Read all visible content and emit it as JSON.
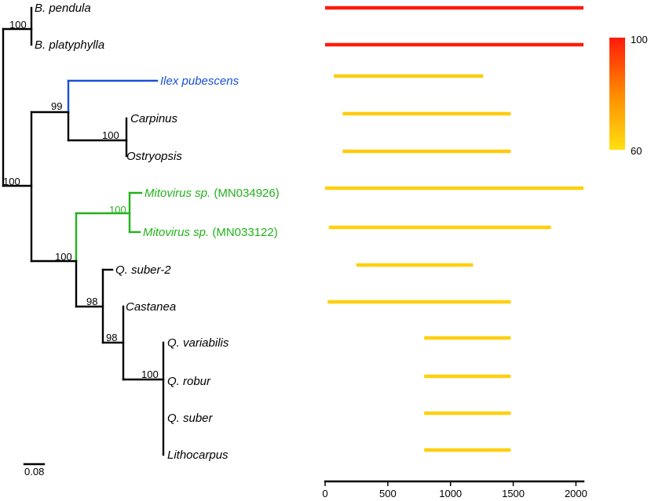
{
  "taxa": [
    {
      "id": "b-pendula",
      "name": "B. pendula",
      "suffix": "",
      "color": "black",
      "coverage": 100,
      "start": 0,
      "end": 2060
    },
    {
      "id": "b-platyphylla",
      "name": "B. platyphylla",
      "suffix": "",
      "color": "black",
      "coverage": 100,
      "start": 0,
      "end": 2060
    },
    {
      "id": "ilex-pubescens",
      "name": "Ilex pubescens",
      "suffix": "",
      "color": "blue",
      "coverage": 65,
      "start": 70,
      "end": 1260
    },
    {
      "id": "carpinus",
      "name": "Carpinus",
      "suffix": "",
      "color": "black",
      "coverage": 65,
      "start": 140,
      "end": 1480
    },
    {
      "id": "ostryopsis",
      "name": "Ostryopsis",
      "suffix": "",
      "color": "black",
      "coverage": 65,
      "start": 140,
      "end": 1480
    },
    {
      "id": "mitovirus-1",
      "name": "Mitovirus sp.",
      "suffix": " (MN034926)",
      "color": "green",
      "coverage": 64,
      "start": 0,
      "end": 2060
    },
    {
      "id": "mitovirus-2",
      "name": "Mitovirus sp.",
      "suffix": " (MN033122)",
      "color": "green",
      "coverage": 64,
      "start": 30,
      "end": 1800
    },
    {
      "id": "q-suber-2",
      "name": "Q. suber-2",
      "suffix": "",
      "color": "black",
      "coverage": 64,
      "start": 250,
      "end": 1180
    },
    {
      "id": "castanea",
      "name": "Castanea",
      "suffix": "",
      "color": "black",
      "coverage": 64,
      "start": 20,
      "end": 1480
    },
    {
      "id": "q-variabilis",
      "name": "Q. variabilis",
      "suffix": "",
      "color": "black",
      "coverage": 64,
      "start": 790,
      "end": 1480
    },
    {
      "id": "q-robur",
      "name": "Q. robur",
      "suffix": "",
      "color": "black",
      "coverage": 64,
      "start": 790,
      "end": 1480
    },
    {
      "id": "q-suber",
      "name": "Q. suber",
      "suffix": "",
      "color": "black",
      "coverage": 64,
      "start": 790,
      "end": 1480
    },
    {
      "id": "lithocarpus",
      "name": "Lithocarpus",
      "suffix": "",
      "color": "black",
      "coverage": 64,
      "start": 790,
      "end": 1480
    }
  ],
  "supports": {
    "betula": "100",
    "root": "100",
    "ilex_clade": "99",
    "carpinus_ostryopsis": "100",
    "mitovirus": "100",
    "mito_fagaceae": "100",
    "fagaceae": "98",
    "castanea_quercus": "98",
    "quercus": "100"
  },
  "scale_bar": "0.08",
  "axis": {
    "min": 0,
    "max": 2060,
    "ticks": [
      0,
      500,
      1000,
      1500,
      2000
    ]
  },
  "legend": {
    "max_label": "100",
    "min_label": "60",
    "max_value": 100,
    "min_value": 60
  },
  "colors": {
    "black": "#000000",
    "blue": "#1a4fd8",
    "green": "#22b21b",
    "bar_high": "#ff1a0a",
    "bar_mid": "#ff8a00",
    "bar_low": "#ffe010"
  }
}
